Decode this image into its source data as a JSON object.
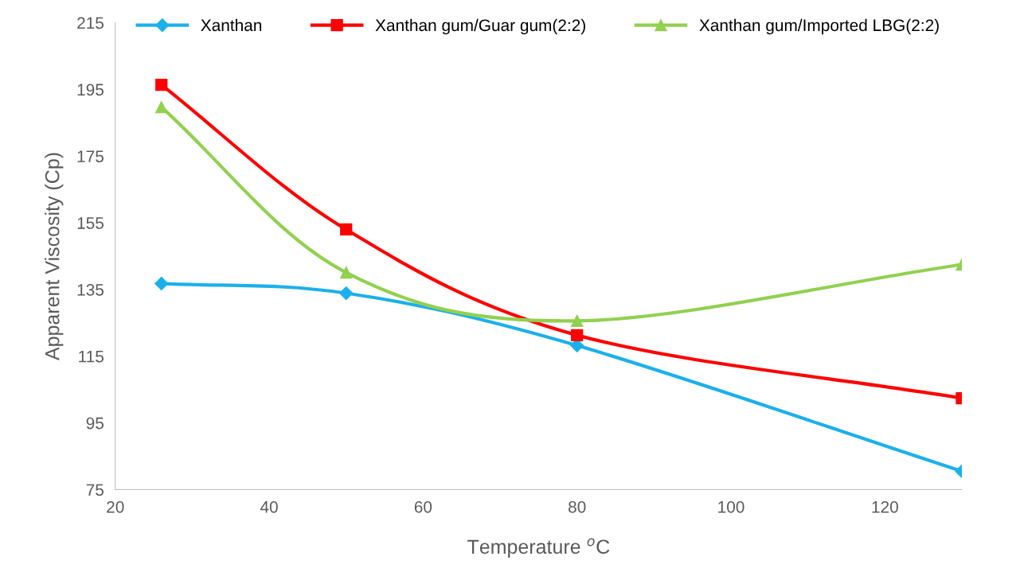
{
  "chart_data": {
    "type": "line",
    "xlabel": "Temperature $^{o}$C",
    "ylabel": "Apparent Viscosity (Cp)",
    "x": [
      26,
      50,
      80,
      130
    ],
    "series": [
      {
        "name": "Xanthan",
        "color": "#1cb0ea",
        "marker": "diamond",
        "values": [
          136.8,
          133.9,
          118.2,
          80.5
        ]
      },
      {
        "name": "Xanthan gum/Guar gum(2:2)",
        "color": "#ff0000",
        "marker": "square",
        "values": [
          196.4,
          153.0,
          121.3,
          102.4
        ]
      },
      {
        "name": "Xanthan gum/Imported LBG(2:2)",
        "color": "#92d050",
        "marker": "triangle",
        "values": [
          189.7,
          140.1,
          125.6,
          142.5
        ]
      }
    ],
    "xlim": [
      20,
      130
    ],
    "xticks": [
      20,
      40,
      60,
      80,
      100,
      120
    ],
    "ylim": [
      75,
      215
    ],
    "yticks": [
      75,
      95,
      115,
      135,
      155,
      175,
      195,
      215
    ],
    "grid": false,
    "legend": "top",
    "line_style": "solid"
  }
}
